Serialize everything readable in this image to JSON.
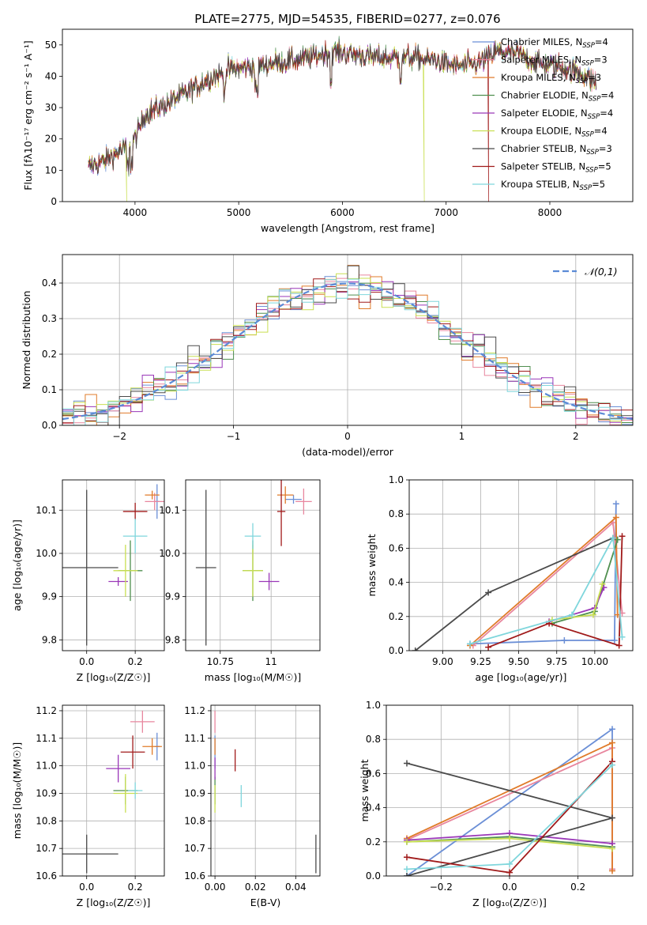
{
  "figure": {
    "title": "PLATE=2775, MJD=54535, FIBERID=0277, z=0.076"
  },
  "series": [
    {
      "name": "Chabrier MILES",
      "nssp": "4",
      "color": "#6b8fd6"
    },
    {
      "name": "Salpeter MILES",
      "nssp": "3",
      "color": "#e8869e"
    },
    {
      "name": "Kroupa MILES",
      "nssp": "3",
      "color": "#e07b2a"
    },
    {
      "name": "Chabrier ELODIE",
      "nssp": "4",
      "color": "#4f8f4f"
    },
    {
      "name": "Salpeter ELODIE",
      "nssp": "4",
      "color": "#9a37b8"
    },
    {
      "name": "Kroupa ELODIE",
      "nssp": "4",
      "color": "#c9df52"
    },
    {
      "name": "Chabrier STELIB",
      "nssp": "3",
      "color": "#4a4a4a"
    },
    {
      "name": "Salpeter STELIB",
      "nssp": "5",
      "color": "#a01a1a"
    },
    {
      "name": "Kroupa STELIB",
      "nssp": "5",
      "color": "#7fd6dc"
    }
  ],
  "legend_sub": "SSP",
  "chart_data": [
    {
      "id": "spectrum",
      "type": "line",
      "xlabel": "wavelength [Angstrom, rest frame]",
      "ylabel": "Flux [fλ10⁻¹⁷ erg cm⁻² s⁻¹ A⁻¹]",
      "xlim": [
        3300,
        8800
      ],
      "ylim": [
        0,
        55
      ],
      "xticks": [
        4000,
        5000,
        6000,
        7000,
        8000
      ],
      "yticks": [
        0,
        10,
        20,
        30,
        40,
        50
      ],
      "grid": false,
      "legend": "upper right",
      "continuum": {
        "x": [
          3550,
          3700,
          3900,
          4000,
          4100,
          4300,
          4500,
          4700,
          4900,
          5100,
          5300,
          5500,
          5700,
          5900,
          6100,
          6300,
          6500,
          6700,
          6900,
          7100,
          7300,
          7500,
          7700,
          7900,
          8100,
          8300,
          8450
        ],
        "y": [
          11,
          13,
          17,
          20,
          28,
          31,
          35,
          39,
          42,
          43,
          44,
          45,
          46,
          48,
          47,
          46,
          46,
          46,
          45,
          43,
          44,
          48,
          47,
          44,
          43,
          41,
          38
        ]
      }
    },
    {
      "id": "residuals",
      "type": "histogram",
      "xlabel": "(data-model)/error",
      "ylabel": "Normed distribution",
      "xlim": [
        -2.5,
        2.5
      ],
      "ylim": [
        0,
        0.48
      ],
      "xticks": [
        -2,
        -1,
        0,
        1,
        2
      ],
      "yticks": [
        0.0,
        0.1,
        0.2,
        0.3,
        0.4
      ],
      "grid": true,
      "legend": "upper right",
      "curve_label": "𝒩(0,1)",
      "curve_color": "#5b8bd6",
      "bin_width": 0.1
    },
    {
      "id": "age_vs_Z",
      "type": "scatter",
      "xlabel": "Z [log₁₀(Z/Z☉)]",
      "ylabel": "age  [log₁₀(age/yr)]",
      "xlim": [
        -0.1,
        0.32
      ],
      "ylim": [
        9.775,
        10.17
      ],
      "xticks": [
        0.0,
        0.2
      ],
      "yticks": [
        9.8,
        9.9,
        10.0,
        10.1
      ],
      "grid": true,
      "points": [
        {
          "x": 0.29,
          "y": 10.12,
          "xerr": 0.01,
          "yerr": 0.04,
          "s": 0
        },
        {
          "x": 0.28,
          "y": 10.12,
          "xerr": 0.04,
          "yerr": 0.02,
          "s": 1
        },
        {
          "x": 0.27,
          "y": 10.135,
          "xerr": 0.03,
          "yerr": 0.01,
          "s": 2
        },
        {
          "x": 0.18,
          "y": 9.96,
          "xerr": 0.05,
          "yerr": 0.07,
          "s": 3
        },
        {
          "x": 0.13,
          "y": 9.935,
          "xerr": 0.04,
          "yerr": 0.01,
          "s": 4
        },
        {
          "x": 0.16,
          "y": 9.96,
          "xerr": 0.05,
          "yerr": 0.06,
          "s": 5
        },
        {
          "x": 0.0,
          "y": 9.967,
          "xerr": 0.13,
          "yerr": 0.18,
          "s": 6
        },
        {
          "x": 0.2,
          "y": 10.097,
          "xerr": 0.05,
          "yerr": 0.02,
          "s": 7
        },
        {
          "x": 0.2,
          "y": 10.04,
          "xerr": 0.05,
          "yerr": 0.04,
          "s": 8
        }
      ]
    },
    {
      "id": "age_vs_mass",
      "type": "scatter",
      "xlabel": "mass [log₁₀(M/M☉)]",
      "ylabel": "",
      "xlim": [
        10.58,
        11.24
      ],
      "ylim": [
        9.775,
        10.17
      ],
      "xticks": [
        10.75,
        11.0
      ],
      "yticks": [
        9.8,
        9.9,
        10.0,
        10.1
      ],
      "grid": true,
      "points": [
        {
          "x": 11.11,
          "y": 10.125,
          "xerr": 0.04,
          "yerr": 0.01,
          "s": 0
        },
        {
          "x": 11.16,
          "y": 10.12,
          "xerr": 0.04,
          "yerr": 0.03,
          "s": 1
        },
        {
          "x": 11.07,
          "y": 10.135,
          "xerr": 0.04,
          "yerr": 0.02,
          "s": 2
        },
        {
          "x": 10.91,
          "y": 9.96,
          "xerr": 0.05,
          "yerr": 0.07,
          "s": 3
        },
        {
          "x": 10.99,
          "y": 9.935,
          "xerr": 0.05,
          "yerr": 0.02,
          "s": 4
        },
        {
          "x": 10.91,
          "y": 9.96,
          "xerr": 0.05,
          "yerr": 0.06,
          "s": 5
        },
        {
          "x": 10.68,
          "y": 9.967,
          "xerr": 0.05,
          "yerr": 0.18,
          "s": 6
        },
        {
          "x": 11.05,
          "y": 10.097,
          "xerr": 0.02,
          "yerr": 0.08,
          "s": 7
        },
        {
          "x": 10.91,
          "y": 10.04,
          "xerr": 0.04,
          "yerr": 0.03,
          "s": 8
        }
      ]
    },
    {
      "id": "weight_vs_age",
      "type": "line",
      "xlabel": "age  [log₁₀(age/yr)]",
      "ylabel": "mass weight",
      "xlim": [
        8.78,
        10.25
      ],
      "ylim": [
        0.0,
        1.0
      ],
      "xticks": [
        9.0,
        9.25,
        9.5,
        9.75,
        10.0
      ],
      "xticklabels": [
        "9.00",
        "9.25",
        "9.50",
        "9.75",
        "10.00"
      ],
      "yticks": [
        0.0,
        0.2,
        0.4,
        0.6,
        0.8,
        1.0
      ],
      "grid": true,
      "series": [
        {
          "s": 0,
          "x": [
            9.18,
            9.8,
            10.13,
            10.14
          ],
          "y": [
            0.04,
            0.06,
            0.06,
            0.86
          ]
        },
        {
          "s": 1,
          "x": [
            9.2,
            10.12,
            10.18
          ],
          "y": [
            0.03,
            0.75,
            0.22
          ]
        },
        {
          "s": 2,
          "x": [
            9.18,
            10.14,
            10.15
          ],
          "y": [
            0.03,
            0.78,
            0.21
          ]
        },
        {
          "s": 3,
          "x": [
            9.72,
            10.0,
            10.15
          ],
          "y": [
            0.16,
            0.23,
            0.65
          ]
        },
        {
          "s": 4,
          "x": [
            9.7,
            10.0,
            10.06
          ],
          "y": [
            0.17,
            0.25,
            0.37
          ]
        },
        {
          "s": 5,
          "x": [
            9.72,
            9.99,
            10.05
          ],
          "y": [
            0.18,
            0.21,
            0.39
          ]
        },
        {
          "s": 6,
          "x": [
            8.82,
            9.3,
            10.12
          ],
          "y": [
            0.0,
            0.34,
            0.66
          ]
        },
        {
          "s": 7,
          "x": [
            9.3,
            9.7,
            10.16,
            10.18
          ],
          "y": [
            0.02,
            0.16,
            0.03,
            0.67
          ]
        },
        {
          "s": 8,
          "x": [
            9.18,
            9.85,
            10.12,
            10.18
          ],
          "y": [
            0.04,
            0.21,
            0.66,
            0.08
          ]
        }
      ]
    },
    {
      "id": "mass_vs_Z",
      "type": "scatter",
      "xlabel": "Z [log₁₀(Z/Z☉)]",
      "ylabel": "mass [log₁₀(M/M☉)]",
      "xlim": [
        -0.1,
        0.32
      ],
      "ylim": [
        10.6,
        11.22
      ],
      "xticks": [
        0.0,
        0.2
      ],
      "yticks": [
        10.6,
        10.7,
        10.8,
        10.9,
        11.0,
        11.1,
        11.2
      ],
      "grid": true,
      "points": [
        {
          "x": 0.29,
          "y": 11.07,
          "xerr": 0.01,
          "yerr": 0.05,
          "s": 0
        },
        {
          "x": 0.23,
          "y": 11.16,
          "xerr": 0.05,
          "yerr": 0.04,
          "s": 1
        },
        {
          "x": 0.27,
          "y": 11.07,
          "xerr": 0.04,
          "yerr": 0.03,
          "s": 2
        },
        {
          "x": 0.16,
          "y": 10.91,
          "xerr": 0.05,
          "yerr": 0.05,
          "s": 3
        },
        {
          "x": 0.13,
          "y": 10.99,
          "xerr": 0.05,
          "yerr": 0.05,
          "s": 4
        },
        {
          "x": 0.16,
          "y": 10.9,
          "xerr": 0.05,
          "yerr": 0.07,
          "s": 5
        },
        {
          "x": 0.0,
          "y": 10.68,
          "xerr": 0.13,
          "yerr": 0.07,
          "s": 6
        },
        {
          "x": 0.19,
          "y": 11.05,
          "xerr": 0.05,
          "yerr": 0.06,
          "s": 7
        },
        {
          "x": 0.2,
          "y": 10.91,
          "xerr": 0.03,
          "yerr": 0.03,
          "s": 8
        }
      ]
    },
    {
      "id": "mass_vs_EBV",
      "type": "scatter",
      "xlabel": "E(B-V)",
      "ylabel": "",
      "xlim": [
        -0.002,
        0.052
      ],
      "ylim": [
        10.6,
        11.22
      ],
      "xticks": [
        0.0,
        0.02,
        0.04
      ],
      "xticklabels": [
        "0.00",
        "0.02",
        "0.04"
      ],
      "yticks": [
        10.6,
        10.7,
        10.8,
        10.9,
        11.0,
        11.1,
        11.2
      ],
      "grid": true,
      "points": [
        {
          "x": 0.0,
          "y": 11.05,
          "xerr": 0,
          "yerr": 0.06,
          "s": 0
        },
        {
          "x": 0.0,
          "y": 11.16,
          "xerr": 0,
          "yerr": 0.04,
          "s": 1
        },
        {
          "x": 0.0,
          "y": 11.07,
          "xerr": 0,
          "yerr": 0.03,
          "s": 2
        },
        {
          "x": 0.0,
          "y": 10.91,
          "xerr": 0,
          "yerr": 0.05,
          "s": 3
        },
        {
          "x": 0.0,
          "y": 10.99,
          "xerr": 0,
          "yerr": 0.04,
          "s": 4
        },
        {
          "x": 0.0,
          "y": 10.88,
          "xerr": 0,
          "yerr": 0.05,
          "s": 5
        },
        {
          "x": 0.05,
          "y": 10.68,
          "xerr": 0,
          "yerr": 0.07,
          "s": 6
        },
        {
          "x": 0.01,
          "y": 11.02,
          "xerr": 0,
          "yerr": 0.04,
          "s": 7
        },
        {
          "x": 0.013,
          "y": 10.89,
          "xerr": 0,
          "yerr": 0.04,
          "s": 8
        }
      ]
    },
    {
      "id": "weight_vs_Z",
      "type": "line",
      "xlabel": "Z [log₁₀(Z/Z☉)]",
      "ylabel": "mass weight",
      "xlim": [
        -0.36,
        0.36
      ],
      "ylim": [
        0.0,
        1.0
      ],
      "xticks": [
        -0.2,
        0.0,
        0.2
      ],
      "xticklabels": [
        "−0.2",
        "0.0",
        "0.2"
      ],
      "yticks": [
        0.0,
        0.2,
        0.4,
        0.6,
        0.8,
        1.0
      ],
      "grid": true,
      "series": [
        {
          "s": 0,
          "x": [
            -0.3,
            0.3,
            0.3
          ],
          "y": [
            0.0,
            0.86,
            0.04
          ]
        },
        {
          "s": 1,
          "x": [
            -0.3,
            0.3,
            0.3
          ],
          "y": [
            0.21,
            0.75,
            0.04
          ]
        },
        {
          "s": 2,
          "x": [
            -0.3,
            0.3,
            0.3
          ],
          "y": [
            0.22,
            0.78,
            0.03
          ]
        },
        {
          "s": 3,
          "x": [
            -0.3,
            0.0,
            0.3
          ],
          "y": [
            0.2,
            0.23,
            0.17
          ]
        },
        {
          "s": 4,
          "x": [
            -0.3,
            0.0,
            0.3
          ],
          "y": [
            0.21,
            0.25,
            0.19
          ]
        },
        {
          "s": 5,
          "x": [
            -0.3,
            0.0,
            0.3
          ],
          "y": [
            0.2,
            0.22,
            0.16
          ]
        },
        {
          "s": 6,
          "x": [
            -0.3,
            0.3,
            -0.3
          ],
          "y": [
            0.0,
            0.34,
            0.66
          ]
        },
        {
          "s": 7,
          "x": [
            -0.3,
            0.0,
            0.3
          ],
          "y": [
            0.11,
            0.02,
            0.67
          ]
        },
        {
          "s": 8,
          "x": [
            -0.3,
            0.0,
            0.3
          ],
          "y": [
            0.04,
            0.07,
            0.65
          ]
        }
      ]
    }
  ]
}
